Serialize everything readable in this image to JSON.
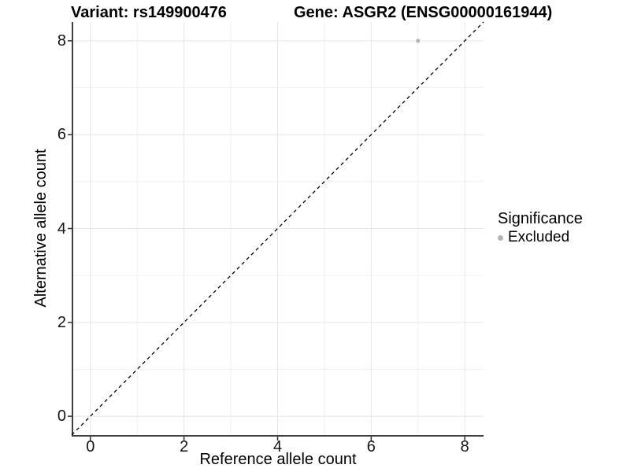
{
  "chart_data": {
    "type": "scatter",
    "titles": {
      "variant": "Variant: rs149900476",
      "gene": "Gene: ASGR2 (ENSG00000161944)"
    },
    "xlabel": "Reference allele count",
    "ylabel": "Alternative allele count",
    "xlim": [
      -0.4,
      8.4
    ],
    "ylim": [
      -0.4,
      8.4
    ],
    "x_ticks": [
      0,
      2,
      4,
      6,
      8
    ],
    "y_ticks": [
      0,
      2,
      4,
      6,
      8
    ],
    "x_minor_ticks": [
      1,
      3,
      5,
      7
    ],
    "y_minor_ticks": [
      1,
      3,
      5,
      7
    ],
    "grid": "major+minor",
    "points": [
      {
        "x": 7,
        "y": 8,
        "significance": "Excluded",
        "color": "#B5B5B5"
      }
    ],
    "identity_line": {
      "type": "identity",
      "style": "dashed",
      "color": "#000000"
    },
    "legend": {
      "title": "Significance",
      "position": "right",
      "items": [
        {
          "label": "Excluded",
          "color": "#B5B5B5",
          "marker": "circle"
        }
      ]
    },
    "colors": {
      "grid_major": "#E6E6E6",
      "grid_minor": "#F0F0F0",
      "axis_line": "#404040",
      "tick_mark": "#333333",
      "text": "#141414"
    }
  }
}
